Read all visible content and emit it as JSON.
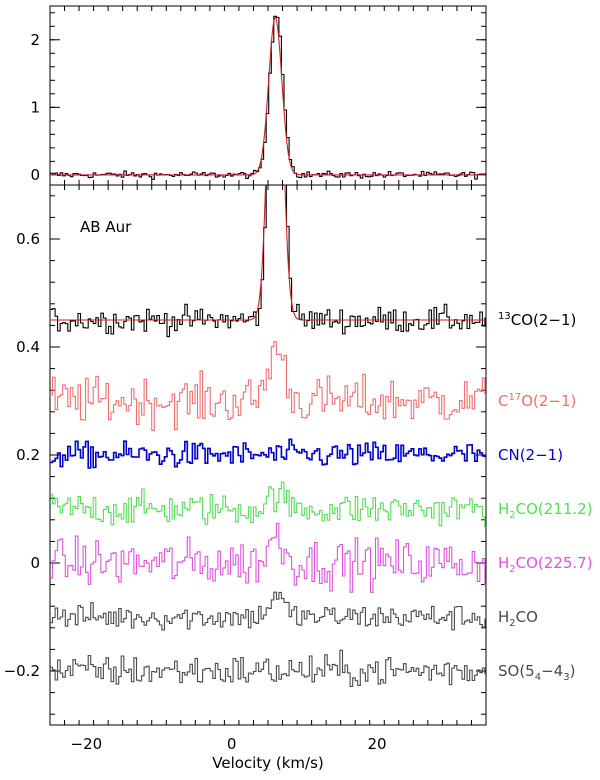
{
  "colors": {
    "black": "#000000",
    "gray": "#4a4a4a",
    "red": "#cc2222",
    "salmon": "#f07070",
    "blue": "#0000cc",
    "green": "#55dd55",
    "magenta": "#dd55dd"
  },
  "chart_data": [
    {
      "type": "line",
      "panel": "top",
      "xlim": [
        -25,
        35
      ],
      "ylim": [
        -0.15,
        2.5
      ],
      "y_ticks": [
        0,
        1,
        2
      ],
      "y_tick_labels": [
        "0",
        "1",
        "2"
      ],
      "x_ticks": [
        -20,
        0,
        20
      ],
      "series": [
        {
          "style": "step",
          "color": "#000000",
          "profile": {
            "baseline": 0.0,
            "noise": 0.025,
            "peak_x": 6.0,
            "peak_y": 2.4,
            "sigma": 0.9
          }
        },
        {
          "style": "line",
          "color": "#cc2222",
          "profile": {
            "baseline": 0.0,
            "noise": 0.0,
            "peak_x": 6.0,
            "peak_y": 2.33,
            "sigma": 0.9
          }
        }
      ]
    },
    {
      "type": "line",
      "panel": "bottom",
      "xlim": [
        -25,
        35
      ],
      "ylim": [
        -0.3,
        0.7
      ],
      "y_ticks": [
        -0.2,
        0,
        0.2,
        0.4,
        0.6
      ],
      "y_tick_labels": [
        "−0.2",
        "0",
        "0.2",
        "0.4",
        "0.6"
      ],
      "x_ticks": [
        -20,
        0,
        20
      ],
      "x_tick_labels": [
        "−20",
        "0",
        "20"
      ],
      "xlabel": "Velocity (km/s)",
      "annotation": "AB Aur",
      "series": [
        {
          "label_main": "CO(2−1)",
          "sup": "13",
          "color": "#000000",
          "style": "step",
          "profile": {
            "baseline": 0.45,
            "noise": 0.012,
            "peak_x": 6.0,
            "peak_y": 0.75,
            "sigma": 0.9
          }
        },
        {
          "label_main": "CO(2−1)",
          "sup": "13",
          "color": "#cc2222",
          "style": "line",
          "hide_label": true,
          "profile": {
            "baseline": 0.45,
            "noise": 0.0,
            "peak_x": 6.0,
            "peak_y": 0.75,
            "sigma": 0.9
          }
        },
        {
          "label_main": "C",
          "sup": "17",
          "label_rest": "O(2−1)",
          "color": "#f07070",
          "style": "step",
          "profile": {
            "baseline": 0.3,
            "noise": 0.022,
            "peak_x": 6.0,
            "peak_y": 0.1,
            "sigma": 1.1
          }
        },
        {
          "label_main": "CN(2−1)",
          "color": "#0000cc",
          "style": "step",
          "profile": {
            "baseline": 0.2,
            "noise": 0.012,
            "peak_x": 6.0,
            "peak_y": 0.0,
            "sigma": 1.0
          }
        },
        {
          "label_main": "H",
          "sub": "2",
          "label_rest": "CO(211.2)",
          "color": "#55dd55",
          "style": "step",
          "profile": {
            "baseline": 0.1,
            "noise": 0.015,
            "peak_x": 6.0,
            "peak_y": 0.03,
            "sigma": 1.0
          }
        },
        {
          "label_main": "H",
          "sub": "2",
          "label_rest": "CO(225.7)",
          "color": "#dd55dd",
          "style": "step",
          "profile": {
            "baseline": 0.0,
            "noise": 0.022,
            "peak_x": 6.0,
            "peak_y": 0.05,
            "sigma": 1.0
          }
        },
        {
          "label_main": "H",
          "sub": "2",
          "label_rest": "CO",
          "color": "#4a4a4a",
          "style": "step",
          "profile": {
            "baseline": -0.1,
            "noise": 0.012,
            "peak_x": 6.0,
            "peak_y": 0.04,
            "sigma": 1.0
          }
        },
        {
          "label_main": "SO(5",
          "sub": "4",
          "label_mid": "−4",
          "sub2": "3",
          "label_rest": ")",
          "color": "#4a4a4a",
          "style": "step",
          "profile": {
            "baseline": -0.2,
            "noise": 0.015,
            "peak_x": 6.0,
            "peak_y": 0.0,
            "sigma": 1.0
          }
        }
      ]
    }
  ]
}
